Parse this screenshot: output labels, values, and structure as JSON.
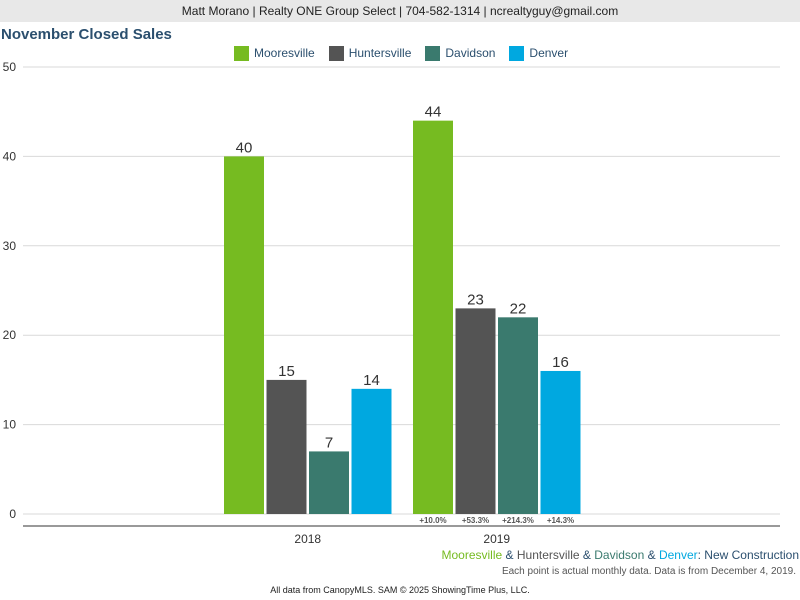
{
  "header": {
    "text": "Matt Morano | Realty ONE Group Select | 704-582-1314 | ncrealtyguy@gmail.com"
  },
  "subtitle": {
    "part1": "Mooresville",
    "sep1": " & ",
    "part2": "Huntersville",
    "sep2": " & ",
    "part3": "Davidson",
    "sep3": " & ",
    "part4": "Denver",
    "suffix": ": New Construction"
  },
  "note": "Each point is actual monthly data. Data is from December 4, 2019.",
  "footer": "All data from CanopyMLS. SAM © 2025 ShowingTime Plus, LLC.",
  "colors": {
    "mooresville": "#76bb21",
    "huntersville": "#545454",
    "davidson": "#3a7a6e",
    "denver": "#00a8e0",
    "title": "#2b4f6e"
  },
  "chart_data": {
    "type": "bar",
    "title": "November Closed Sales",
    "categories": [
      "2018",
      "2019"
    ],
    "series": [
      {
        "name": "Mooresville",
        "values": [
          40,
          44
        ],
        "change": [
          "",
          "+10.0%"
        ],
        "color": "#76bb21"
      },
      {
        "name": "Huntersville",
        "values": [
          15,
          23
        ],
        "change": [
          "",
          "+53.3%"
        ],
        "color": "#545454"
      },
      {
        "name": "Davidson",
        "values": [
          7,
          22
        ],
        "change": [
          "",
          "+214.3%"
        ],
        "color": "#3a7a6e"
      },
      {
        "name": "Denver",
        "values": [
          14,
          16
        ],
        "change": [
          "",
          "+14.3%"
        ],
        "color": "#00a8e0"
      }
    ],
    "yticks": [
      0,
      10,
      20,
      30,
      40,
      50
    ],
    "ylim": [
      0,
      50
    ],
    "grid": true,
    "legend": "top"
  }
}
